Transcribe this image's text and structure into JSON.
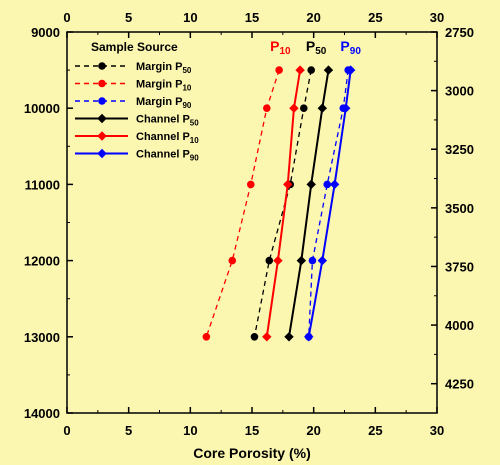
{
  "chart_data": {
    "type": "line",
    "xlabel": "Core Porosity (%)",
    "xlim": [
      0,
      30
    ],
    "x_ticks": [
      "0",
      "5",
      "10",
      "15",
      "20",
      "25",
      "30"
    ],
    "ylim_left": [
      9000,
      14000
    ],
    "y_ticks_left": [
      "9000",
      "10000",
      "11000",
      "12000",
      "13000",
      "14000"
    ],
    "ylim_right": [
      2750,
      4375
    ],
    "y_ticks_right": [
      "2750",
      "3000",
      "3250",
      "3500",
      "3750",
      "4000",
      "4250"
    ],
    "legend": {
      "title": "Sample Source",
      "placement": "top-left",
      "entries": [
        {
          "label": "Margin P",
          "sub": "50",
          "color": "#000000",
          "dash": true,
          "marker": "circle"
        },
        {
          "label": "Margin P",
          "sub": "10",
          "color": "#ff0000",
          "dash": true,
          "marker": "circle"
        },
        {
          "label": "Margin P",
          "sub": "90",
          "color": "#0000ff",
          "dash": true,
          "marker": "circle"
        },
        {
          "label": "Channel P",
          "sub": "50",
          "color": "#000000",
          "dash": false,
          "marker": "diamond"
        },
        {
          "label": "Channel P",
          "sub": "10",
          "color": "#ff0000",
          "dash": false,
          "marker": "diamond"
        },
        {
          "label": "Channel P",
          "sub": "90",
          "color": "#0000ff",
          "dash": false,
          "marker": "diamond"
        }
      ]
    },
    "annotations": [
      {
        "text": "P",
        "sub": "10",
        "color": "#ff0000",
        "x": 17.3
      },
      {
        "text": "P",
        "sub": "50",
        "color": "#000000",
        "x": 20.2
      },
      {
        "text": "P",
        "sub": "90",
        "color": "#0000ff",
        "x": 23.0
      }
    ],
    "series": [
      {
        "name": "Margin P50",
        "color": "#000000",
        "dash": true,
        "marker": "circle",
        "points": [
          [
            19.8,
            9500
          ],
          [
            19.2,
            10000
          ],
          [
            18.1,
            11000
          ],
          [
            16.4,
            12000
          ],
          [
            15.2,
            13000
          ]
        ]
      },
      {
        "name": "Margin P10",
        "color": "#ff0000",
        "dash": true,
        "marker": "circle",
        "points": [
          [
            17.2,
            9500
          ],
          [
            16.2,
            10000
          ],
          [
            14.9,
            11000
          ],
          [
            13.4,
            12000
          ],
          [
            11.3,
            13000
          ]
        ]
      },
      {
        "name": "Margin P90",
        "color": "#0000ff",
        "dash": true,
        "marker": "circle",
        "points": [
          [
            22.8,
            9500
          ],
          [
            22.4,
            10000
          ],
          [
            21.1,
            11000
          ],
          [
            19.9,
            12000
          ],
          [
            19.6,
            13000
          ]
        ]
      },
      {
        "name": "Channel P50",
        "color": "#000000",
        "dash": false,
        "marker": "diamond",
        "points": [
          [
            21.2,
            9500
          ],
          [
            20.7,
            10000
          ],
          [
            19.8,
            11000
          ],
          [
            19.0,
            12000
          ],
          [
            18.0,
            13000
          ]
        ]
      },
      {
        "name": "Channel P10",
        "color": "#ff0000",
        "dash": false,
        "marker": "diamond",
        "points": [
          [
            18.9,
            9500
          ],
          [
            18.4,
            10000
          ],
          [
            17.9,
            11000
          ],
          [
            17.1,
            12000
          ],
          [
            16.2,
            13000
          ]
        ]
      },
      {
        "name": "Channel P90",
        "color": "#0000ff",
        "dash": false,
        "marker": "diamond",
        "points": [
          [
            23.0,
            9500
          ],
          [
            22.6,
            10000
          ],
          [
            21.7,
            11000
          ],
          [
            20.7,
            12000
          ],
          [
            19.6,
            13000
          ]
        ]
      }
    ]
  }
}
